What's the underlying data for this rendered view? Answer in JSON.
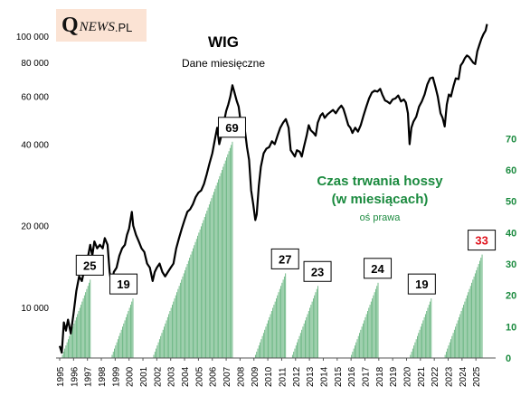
{
  "logo": {
    "q": "Q",
    "news": "NEWS",
    "pl": ".PL"
  },
  "chart_data": {
    "type": "line+bar",
    "title": "WIG",
    "subtitle": "Dane miesięczne",
    "annotation": {
      "line1": "Czas trwania hossy",
      "line2": "(w miesiącach)",
      "line3": "oś prawa"
    },
    "left_axis": {
      "scale": "log",
      "range": [
        6500,
        115000
      ],
      "ticks": [
        10000,
        20000,
        40000,
        60000,
        80000,
        100000
      ],
      "tick_labels": [
        "10 000",
        "20 000",
        "40 000",
        "60 000",
        "80 000",
        "100 000"
      ]
    },
    "right_axis": {
      "range": [
        0,
        75
      ],
      "ticks": [
        0,
        10,
        20,
        30,
        40,
        50,
        60,
        70
      ],
      "tick_labels": [
        "0",
        "10",
        "20",
        "30",
        "40",
        "50",
        "60",
        "70"
      ]
    },
    "x_axis": {
      "range": [
        1995.0,
        2025.9
      ],
      "tick_years": [
        1995,
        1996,
        1997,
        1998,
        1999,
        2000,
        2001,
        2002,
        2003,
        2004,
        2005,
        2006,
        2007,
        2008,
        2009,
        2010,
        2011,
        2012,
        2013,
        2014,
        2015,
        2016,
        2017,
        2018,
        2019,
        2020,
        2021,
        2022,
        2023,
        2024,
        2025
      ],
      "tick_labels": [
        "1995",
        "1996",
        "1997",
        "1998",
        "1999",
        "2000",
        "2001",
        "2002",
        "2003",
        "2004",
        "2005",
        "2006",
        "2007",
        "2008",
        "2009",
        "2010",
        "2011",
        "2012",
        "2013",
        "2014",
        "2015",
        "2016",
        "2017",
        "2018",
        "2019",
        "2020",
        "2021",
        "2022",
        "2023",
        "2024",
        "2025"
      ]
    },
    "bull_markets": [
      {
        "start": 1995.17,
        "months": 25,
        "label": "25",
        "highlight": false
      },
      {
        "start": 1998.75,
        "months": 19,
        "label": "19",
        "highlight": false
      },
      {
        "start": 2001.75,
        "months": 69,
        "label": "69",
        "highlight": false
      },
      {
        "start": 2009.08,
        "months": 27,
        "label": "27",
        "highlight": false
      },
      {
        "start": 2011.75,
        "months": 23,
        "label": "23",
        "highlight": false
      },
      {
        "start": 2016.0,
        "months": 24,
        "label": "24",
        "highlight": false
      },
      {
        "start": 2020.25,
        "months": 19,
        "label": "19",
        "highlight": false
      },
      {
        "start": 2022.75,
        "months": 33,
        "label": "33",
        "highlight": true
      }
    ],
    "wig_series": {
      "name": "WIG",
      "points": [
        [
          1995.0,
          7200
        ],
        [
          1995.15,
          6800
        ],
        [
          1995.3,
          8800
        ],
        [
          1995.45,
          8200
        ],
        [
          1995.6,
          9000
        ],
        [
          1995.8,
          8000
        ],
        [
          1996.0,
          9500
        ],
        [
          1996.2,
          11500
        ],
        [
          1996.4,
          13000
        ],
        [
          1996.6,
          12500
        ],
        [
          1996.8,
          14000
        ],
        [
          1997.0,
          15000
        ],
        [
          1997.2,
          17000
        ],
        [
          1997.35,
          15500
        ],
        [
          1997.5,
          17500
        ],
        [
          1997.7,
          16500
        ],
        [
          1997.9,
          17000
        ],
        [
          1998.1,
          16500
        ],
        [
          1998.25,
          18000
        ],
        [
          1998.45,
          17000
        ],
        [
          1998.6,
          13500
        ],
        [
          1998.75,
          12000
        ],
        [
          1998.9,
          13500
        ],
        [
          1999.1,
          14000
        ],
        [
          1999.3,
          15500
        ],
        [
          1999.5,
          16500
        ],
        [
          1999.7,
          17000
        ],
        [
          1999.85,
          18500
        ],
        [
          2000.0,
          19500
        ],
        [
          2000.2,
          22500
        ],
        [
          2000.3,
          20000
        ],
        [
          2000.5,
          18500
        ],
        [
          2000.7,
          17500
        ],
        [
          2000.9,
          16500
        ],
        [
          2001.1,
          16000
        ],
        [
          2001.3,
          14500
        ],
        [
          2001.5,
          14000
        ],
        [
          2001.7,
          12500
        ],
        [
          2001.85,
          13500
        ],
        [
          2002.0,
          14000
        ],
        [
          2002.2,
          14500
        ],
        [
          2002.4,
          13500
        ],
        [
          2002.6,
          13000
        ],
        [
          2002.8,
          13500
        ],
        [
          2003.0,
          14000
        ],
        [
          2003.2,
          14500
        ],
        [
          2003.4,
          16500
        ],
        [
          2003.6,
          18000
        ],
        [
          2003.8,
          19500
        ],
        [
          2004.0,
          21000
        ],
        [
          2004.2,
          22500
        ],
        [
          2004.4,
          23000
        ],
        [
          2004.6,
          24000
        ],
        [
          2004.8,
          25500
        ],
        [
          2005.0,
          26500
        ],
        [
          2005.2,
          27000
        ],
        [
          2005.4,
          28500
        ],
        [
          2005.6,
          31000
        ],
        [
          2005.8,
          34000
        ],
        [
          2006.0,
          37000
        ],
        [
          2006.2,
          42000
        ],
        [
          2006.35,
          46000
        ],
        [
          2006.5,
          40000
        ],
        [
          2006.7,
          44000
        ],
        [
          2006.9,
          50000
        ],
        [
          2007.0,
          53000
        ],
        [
          2007.15,
          56000
        ],
        [
          2007.3,
          60000
        ],
        [
          2007.45,
          66000
        ],
        [
          2007.6,
          62000
        ],
        [
          2007.75,
          58000
        ],
        [
          2007.9,
          55000
        ],
        [
          2008.05,
          48000
        ],
        [
          2008.2,
          47000
        ],
        [
          2008.35,
          45000
        ],
        [
          2008.5,
          39000
        ],
        [
          2008.65,
          35000
        ],
        [
          2008.8,
          27000
        ],
        [
          2008.95,
          24000
        ],
        [
          2009.1,
          21000
        ],
        [
          2009.2,
          22000
        ],
        [
          2009.35,
          28000
        ],
        [
          2009.5,
          33000
        ],
        [
          2009.7,
          37000
        ],
        [
          2009.9,
          38500
        ],
        [
          2010.1,
          39000
        ],
        [
          2010.3,
          41000
        ],
        [
          2010.5,
          40000
        ],
        [
          2010.7,
          43000
        ],
        [
          2010.9,
          46000
        ],
        [
          2011.1,
          48000
        ],
        [
          2011.3,
          49500
        ],
        [
          2011.5,
          46000
        ],
        [
          2011.65,
          38000
        ],
        [
          2011.8,
          37000
        ],
        [
          2011.95,
          36000
        ],
        [
          2012.1,
          38000
        ],
        [
          2012.3,
          37500
        ],
        [
          2012.45,
          36000
        ],
        [
          2012.6,
          39000
        ],
        [
          2012.8,
          43000
        ],
        [
          2012.95,
          47000
        ],
        [
          2013.1,
          45000
        ],
        [
          2013.3,
          44000
        ],
        [
          2013.45,
          43000
        ],
        [
          2013.6,
          48000
        ],
        [
          2013.8,
          51000
        ],
        [
          2013.95,
          52000
        ],
        [
          2014.1,
          50000
        ],
        [
          2014.3,
          51500
        ],
        [
          2014.5,
          52500
        ],
        [
          2014.7,
          53500
        ],
        [
          2014.9,
          52000
        ],
        [
          2015.1,
          54000
        ],
        [
          2015.3,
          55500
        ],
        [
          2015.45,
          54000
        ],
        [
          2015.6,
          51000
        ],
        [
          2015.8,
          47000
        ],
        [
          2015.95,
          46000
        ],
        [
          2016.1,
          44000
        ],
        [
          2016.3,
          46000
        ],
        [
          2016.5,
          44500
        ],
        [
          2016.7,
          47000
        ],
        [
          2016.9,
          51000
        ],
        [
          2017.1,
          55000
        ],
        [
          2017.3,
          59000
        ],
        [
          2017.5,
          62000
        ],
        [
          2017.7,
          63000
        ],
        [
          2017.9,
          62500
        ],
        [
          2018.1,
          64000
        ],
        [
          2018.25,
          61000
        ],
        [
          2018.45,
          58000
        ],
        [
          2018.6,
          57500
        ],
        [
          2018.8,
          56500
        ],
        [
          2019.0,
          58500
        ],
        [
          2019.2,
          59000
        ],
        [
          2019.4,
          60500
        ],
        [
          2019.6,
          57500
        ],
        [
          2019.8,
          58500
        ],
        [
          2019.95,
          57000
        ],
        [
          2020.1,
          52000
        ],
        [
          2020.22,
          40000
        ],
        [
          2020.35,
          46000
        ],
        [
          2020.5,
          48500
        ],
        [
          2020.7,
          50500
        ],
        [
          2020.9,
          55000
        ],
        [
          2021.1,
          57500
        ],
        [
          2021.3,
          61000
        ],
        [
          2021.5,
          66500
        ],
        [
          2021.7,
          70000
        ],
        [
          2021.9,
          70500
        ],
        [
          2022.1,
          64500
        ],
        [
          2022.25,
          60000
        ],
        [
          2022.45,
          52000
        ],
        [
          2022.6,
          50000
        ],
        [
          2022.75,
          46500
        ],
        [
          2022.9,
          56000
        ],
        [
          2023.05,
          61000
        ],
        [
          2023.2,
          60000
        ],
        [
          2023.4,
          66000
        ],
        [
          2023.55,
          70000
        ],
        [
          2023.75,
          69500
        ],
        [
          2023.9,
          78000
        ],
        [
          2024.05,
          80000
        ],
        [
          2024.2,
          83000
        ],
        [
          2024.35,
          85000
        ],
        [
          2024.5,
          84000
        ],
        [
          2024.65,
          82000
        ],
        [
          2024.8,
          80000
        ],
        [
          2024.95,
          79000
        ],
        [
          2025.1,
          88000
        ],
        [
          2025.25,
          93000
        ],
        [
          2025.4,
          98000
        ],
        [
          2025.55,
          102000
        ],
        [
          2025.7,
          105000
        ],
        [
          2025.8,
          111000
        ]
      ]
    }
  }
}
